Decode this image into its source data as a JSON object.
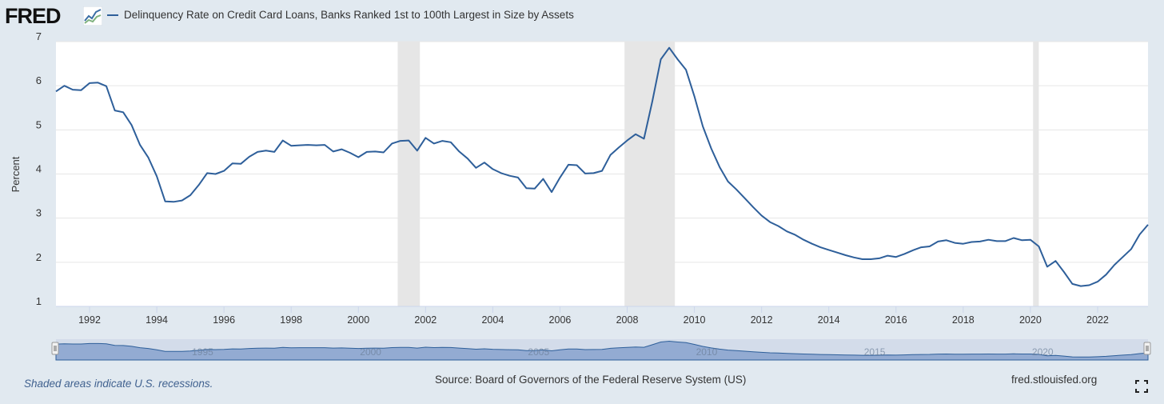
{
  "header": {
    "logo_text": "FRED",
    "series_title": "Delinquency Rate on Credit Card Loans, Banks Ranked 1st to 100th Largest in Size by Assets"
  },
  "footer": {
    "recession_note": "Shaded areas indicate U.S. recessions.",
    "source": "Source: Board of Governors of the Federal Reserve System (US)",
    "site": "fred.stlouisfed.org"
  },
  "colors": {
    "series_line": "#2e5f9a",
    "recession_shade": "#e6e6e6",
    "plot_background": "#ffffff",
    "page_background": "#e1e9f0",
    "navigator_fill": "#7d9bc9"
  },
  "icons": [
    "fred-logo-graph-icon",
    "fullscreen-icon",
    "navigator-left-handle-icon",
    "navigator-right-handle-icon"
  ],
  "chart_data": {
    "type": "line",
    "title": "Delinquency Rate on Credit Card Loans, Banks Ranked 1st to 100th Largest in Size by Assets",
    "ylabel": "Percent",
    "xlabel": "",
    "xlim": [
      1991.0,
      2023.5
    ],
    "ylim": [
      1,
      7
    ],
    "yticks": [
      1,
      2,
      3,
      4,
      5,
      6,
      7
    ],
    "xticks": [
      1992,
      1994,
      1996,
      1998,
      2000,
      2002,
      2004,
      2006,
      2008,
      2010,
      2012,
      2014,
      2016,
      2018,
      2020,
      2022
    ],
    "navigator_labels": [
      "1995",
      "2000",
      "2005",
      "2010",
      "2015",
      "2020"
    ],
    "grid": true,
    "legend": "top-left",
    "recessions": [
      [
        2001.17,
        2001.83
      ],
      [
        2007.92,
        2009.42
      ],
      [
        2020.08,
        2020.25
      ]
    ],
    "series": [
      {
        "name": "Delinquency Rate on Credit Card Loans, Banks Ranked 1st to 100th Largest in Size by Assets",
        "x": [
          1991.0,
          1991.25,
          1991.5,
          1991.75,
          1992.0,
          1992.25,
          1992.5,
          1992.75,
          1993.0,
          1993.25,
          1993.5,
          1993.75,
          1994.0,
          1994.25,
          1994.5,
          1994.75,
          1995.0,
          1995.25,
          1995.5,
          1995.75,
          1996.0,
          1996.25,
          1996.5,
          1996.75,
          1997.0,
          1997.25,
          1997.5,
          1997.75,
          1998.0,
          1998.25,
          1998.5,
          1998.75,
          1999.0,
          1999.25,
          1999.5,
          1999.75,
          2000.0,
          2000.25,
          2000.5,
          2000.75,
          2001.0,
          2001.25,
          2001.5,
          2001.75,
          2002.0,
          2002.25,
          2002.5,
          2002.75,
          2003.0,
          2003.25,
          2003.5,
          2003.75,
          2004.0,
          2004.25,
          2004.5,
          2004.75,
          2005.0,
          2005.25,
          2005.5,
          2005.75,
          2006.0,
          2006.25,
          2006.5,
          2006.75,
          2007.0,
          2007.25,
          2007.5,
          2007.75,
          2008.0,
          2008.25,
          2008.5,
          2008.75,
          2009.0,
          2009.25,
          2009.5,
          2009.75,
          2010.0,
          2010.25,
          2010.5,
          2010.75,
          2011.0,
          2011.25,
          2011.5,
          2011.75,
          2012.0,
          2012.25,
          2012.5,
          2012.75,
          2013.0,
          2013.25,
          2013.5,
          2013.75,
          2014.0,
          2014.25,
          2014.5,
          2014.75,
          2015.0,
          2015.25,
          2015.5,
          2015.75,
          2016.0,
          2016.25,
          2016.5,
          2016.75,
          2017.0,
          2017.25,
          2017.5,
          2017.75,
          2018.0,
          2018.25,
          2018.5,
          2018.75,
          2019.0,
          2019.25,
          2019.5,
          2019.75,
          2020.0,
          2020.25,
          2020.5,
          2020.75,
          2021.0,
          2021.25,
          2021.5,
          2021.75,
          2022.0,
          2022.25,
          2022.5,
          2022.75,
          2023.0,
          2023.25,
          2023.5
        ],
        "values": [
          5.87,
          6.0,
          5.91,
          5.9,
          6.06,
          6.07,
          5.99,
          5.44,
          5.4,
          5.11,
          4.66,
          4.37,
          3.95,
          3.38,
          3.37,
          3.4,
          3.52,
          3.75,
          4.02,
          4.0,
          4.07,
          4.24,
          4.23,
          4.39,
          4.5,
          4.53,
          4.5,
          4.76,
          4.64,
          4.65,
          4.66,
          4.65,
          4.66,
          4.51,
          4.56,
          4.48,
          4.38,
          4.5,
          4.51,
          4.49,
          4.69,
          4.75,
          4.76,
          4.53,
          4.82,
          4.69,
          4.75,
          4.72,
          4.51,
          4.35,
          4.14,
          4.26,
          4.11,
          4.02,
          3.96,
          3.92,
          3.68,
          3.67,
          3.89,
          3.59,
          3.92,
          4.21,
          4.2,
          4.01,
          4.02,
          4.07,
          4.43,
          4.6,
          4.76,
          4.9,
          4.8,
          5.65,
          6.6,
          6.86,
          6.6,
          6.36,
          5.76,
          5.08,
          4.58,
          4.16,
          3.83,
          3.65,
          3.45,
          3.25,
          3.06,
          2.91,
          2.82,
          2.7,
          2.62,
          2.51,
          2.42,
          2.34,
          2.28,
          2.22,
          2.16,
          2.11,
          2.07,
          2.07,
          2.09,
          2.15,
          2.12,
          2.19,
          2.27,
          2.34,
          2.36,
          2.47,
          2.5,
          2.44,
          2.42,
          2.46,
          2.47,
          2.51,
          2.48,
          2.48,
          2.55,
          2.5,
          2.51,
          2.36,
          1.9,
          2.03,
          1.78,
          1.51,
          1.46,
          1.48,
          1.56,
          1.72,
          1.94,
          2.12,
          2.3,
          2.63,
          2.85
        ]
      }
    ]
  }
}
